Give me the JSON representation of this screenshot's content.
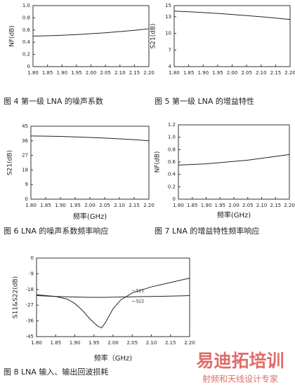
{
  "chart_data": [
    {
      "type": "line",
      "caption": "图 4 第一级 LNA 的噪声系数",
      "ylabel": "NF(dB)",
      "x": [
        1.8,
        1.85,
        1.9,
        1.95,
        2.0,
        2.05,
        2.1,
        2.15,
        2.2
      ],
      "values": [
        0.5,
        0.505,
        0.515,
        0.525,
        0.54,
        0.555,
        0.575,
        0.595,
        0.62
      ],
      "color": "#222222",
      "xlim": [
        1.8,
        2.2
      ],
      "xticks": [
        {
          "value": 1.8,
          "label": "1.80"
        },
        1.85,
        {
          "value": 1.9,
          "label": "1.90"
        },
        1.95,
        {
          "value": 2.0,
          "label": "2.00"
        },
        2.05,
        {
          "value": 2.1,
          "label": "2.10"
        },
        2.15,
        {
          "value": 2.2,
          "label": "2.20"
        }
      ],
      "ylim": [
        0,
        1
      ],
      "yticks": [
        0,
        0.2,
        0.4,
        0.6,
        0.8,
        {
          "value": 1,
          "label": "1.0"
        }
      ]
    },
    {
      "type": "line",
      "caption": "图 5 第一级 LNA 的增益特性",
      "ylabel": "S21(dB)",
      "x": [
        1.8,
        1.85,
        1.9,
        1.95,
        2.0,
        2.05,
        2.1,
        2.15,
        2.2
      ],
      "values": [
        14,
        13.9,
        13.75,
        13.6,
        13.4,
        13.2,
        13.0,
        12.75,
        12.5
      ],
      "color": "#222222",
      "xlim": [
        1.8,
        2.2
      ],
      "xticks": [
        {
          "value": 1.8,
          "label": "1.80"
        },
        1.85,
        {
          "value": 1.9,
          "label": "1.90"
        },
        1.95,
        {
          "value": 2.0,
          "label": "2.00"
        },
        2.05,
        {
          "value": 2.1,
          "label": "2.10"
        },
        2.15,
        {
          "value": 2.2,
          "label": "2.20"
        }
      ],
      "ylim": [
        4,
        15
      ],
      "yticks": [
        4,
        7,
        10,
        13,
        15
      ]
    },
    {
      "type": "line",
      "caption": "图 6 LNA 的噪声系数频率响应",
      "ylabel": "S21(dB)",
      "xlabel": "频率(GHz)",
      "x": [
        1.8,
        1.85,
        1.9,
        1.95,
        2.0,
        2.05,
        2.1,
        2.15,
        2.2
      ],
      "values": [
        39,
        38.9,
        38.7,
        38.4,
        38.1,
        37.7,
        37.2,
        36.7,
        36
      ],
      "color": "#222222",
      "xlim": [
        1.8,
        2.2
      ],
      "xticks": [
        {
          "value": 1.8,
          "label": "1.80"
        },
        1.85,
        {
          "value": 1.9,
          "label": "1.90"
        },
        1.95,
        {
          "value": 2.0,
          "label": "2.00"
        },
        2.05,
        {
          "value": 2.1,
          "label": "2.10"
        },
        2.15,
        {
          "value": 2.2,
          "label": "2.20"
        }
      ],
      "ylim": [
        0,
        45
      ],
      "yticks": [
        0,
        9,
        18,
        27,
        36,
        45
      ]
    },
    {
      "type": "line",
      "caption": "图 7 LNA 的增益特性频率响应",
      "ylabel": "NF(dB)",
      "xlabel": "频率(GHz)",
      "x": [
        1.8,
        1.85,
        1.9,
        1.95,
        2.0,
        2.05,
        2.1,
        2.15,
        2.2
      ],
      "values": [
        0.55,
        0.56,
        0.57,
        0.59,
        0.61,
        0.63,
        0.66,
        0.69,
        0.72
      ],
      "color": "#222222",
      "xlim": [
        1.8,
        2.2
      ],
      "xticks": [
        {
          "value": 1.8,
          "label": "1.80"
        },
        1.85,
        {
          "value": 1.9,
          "label": "1.90"
        },
        1.95,
        {
          "value": 2.0,
          "label": "2.00"
        },
        2.05,
        {
          "value": 2.1,
          "label": "2.10"
        },
        2.15,
        {
          "value": 2.2,
          "label": "2.20"
        }
      ],
      "ylim": [
        0,
        1.2
      ],
      "yticks": [
        0,
        0.2,
        0.4,
        0.6,
        0.8,
        {
          "value": 1,
          "label": "1.0"
        },
        1.2
      ]
    },
    {
      "type": "line",
      "caption": "图 8 LNA 输入、输出回波损耗",
      "ylabel": "S11&S22(dB)",
      "xlabel": "频率（GHz)",
      "x": [
        1.8,
        1.85,
        1.88,
        1.9,
        1.92,
        1.94,
        1.96,
        1.97,
        1.98,
        2.0,
        2.02,
        2.05,
        2.1,
        2.15,
        2.2
      ],
      "series": [
        {
          "name": "S11",
          "color": "#222222",
          "values": [
            -21,
            -22,
            -23.5,
            -26,
            -30,
            -35,
            -39,
            -40,
            -37,
            -29,
            -24,
            -20,
            -16.5,
            -14,
            -11.5
          ]
        },
        {
          "name": "S22",
          "color": "#222222",
          "values": [
            -21.5,
            -22,
            -22.2,
            -22.3,
            -22.4,
            -22.5,
            -22.5,
            -22.5,
            -22.5,
            -22.4,
            -22.3,
            -22.2,
            -22,
            -21.8,
            -21.5
          ]
        }
      ],
      "xlim": [
        1.8,
        2.2
      ],
      "xticks": [
        {
          "value": 1.8,
          "label": "1.80"
        },
        1.85,
        {
          "value": 1.9,
          "label": "1.90"
        },
        1.95,
        {
          "value": 2.0,
          "label": "2.00"
        },
        2.05,
        {
          "value": 2.1,
          "label": "2.10"
        },
        2.15,
        {
          "value": 2.2,
          "label": "2.20"
        }
      ],
      "ylim": [
        -45,
        0
      ],
      "yticks": [
        0,
        -9,
        -18,
        -27,
        -36,
        -45
      ]
    }
  ],
  "watermark": {
    "title": "易迪拓培训",
    "subtitle": "射频和天线设计专家"
  }
}
